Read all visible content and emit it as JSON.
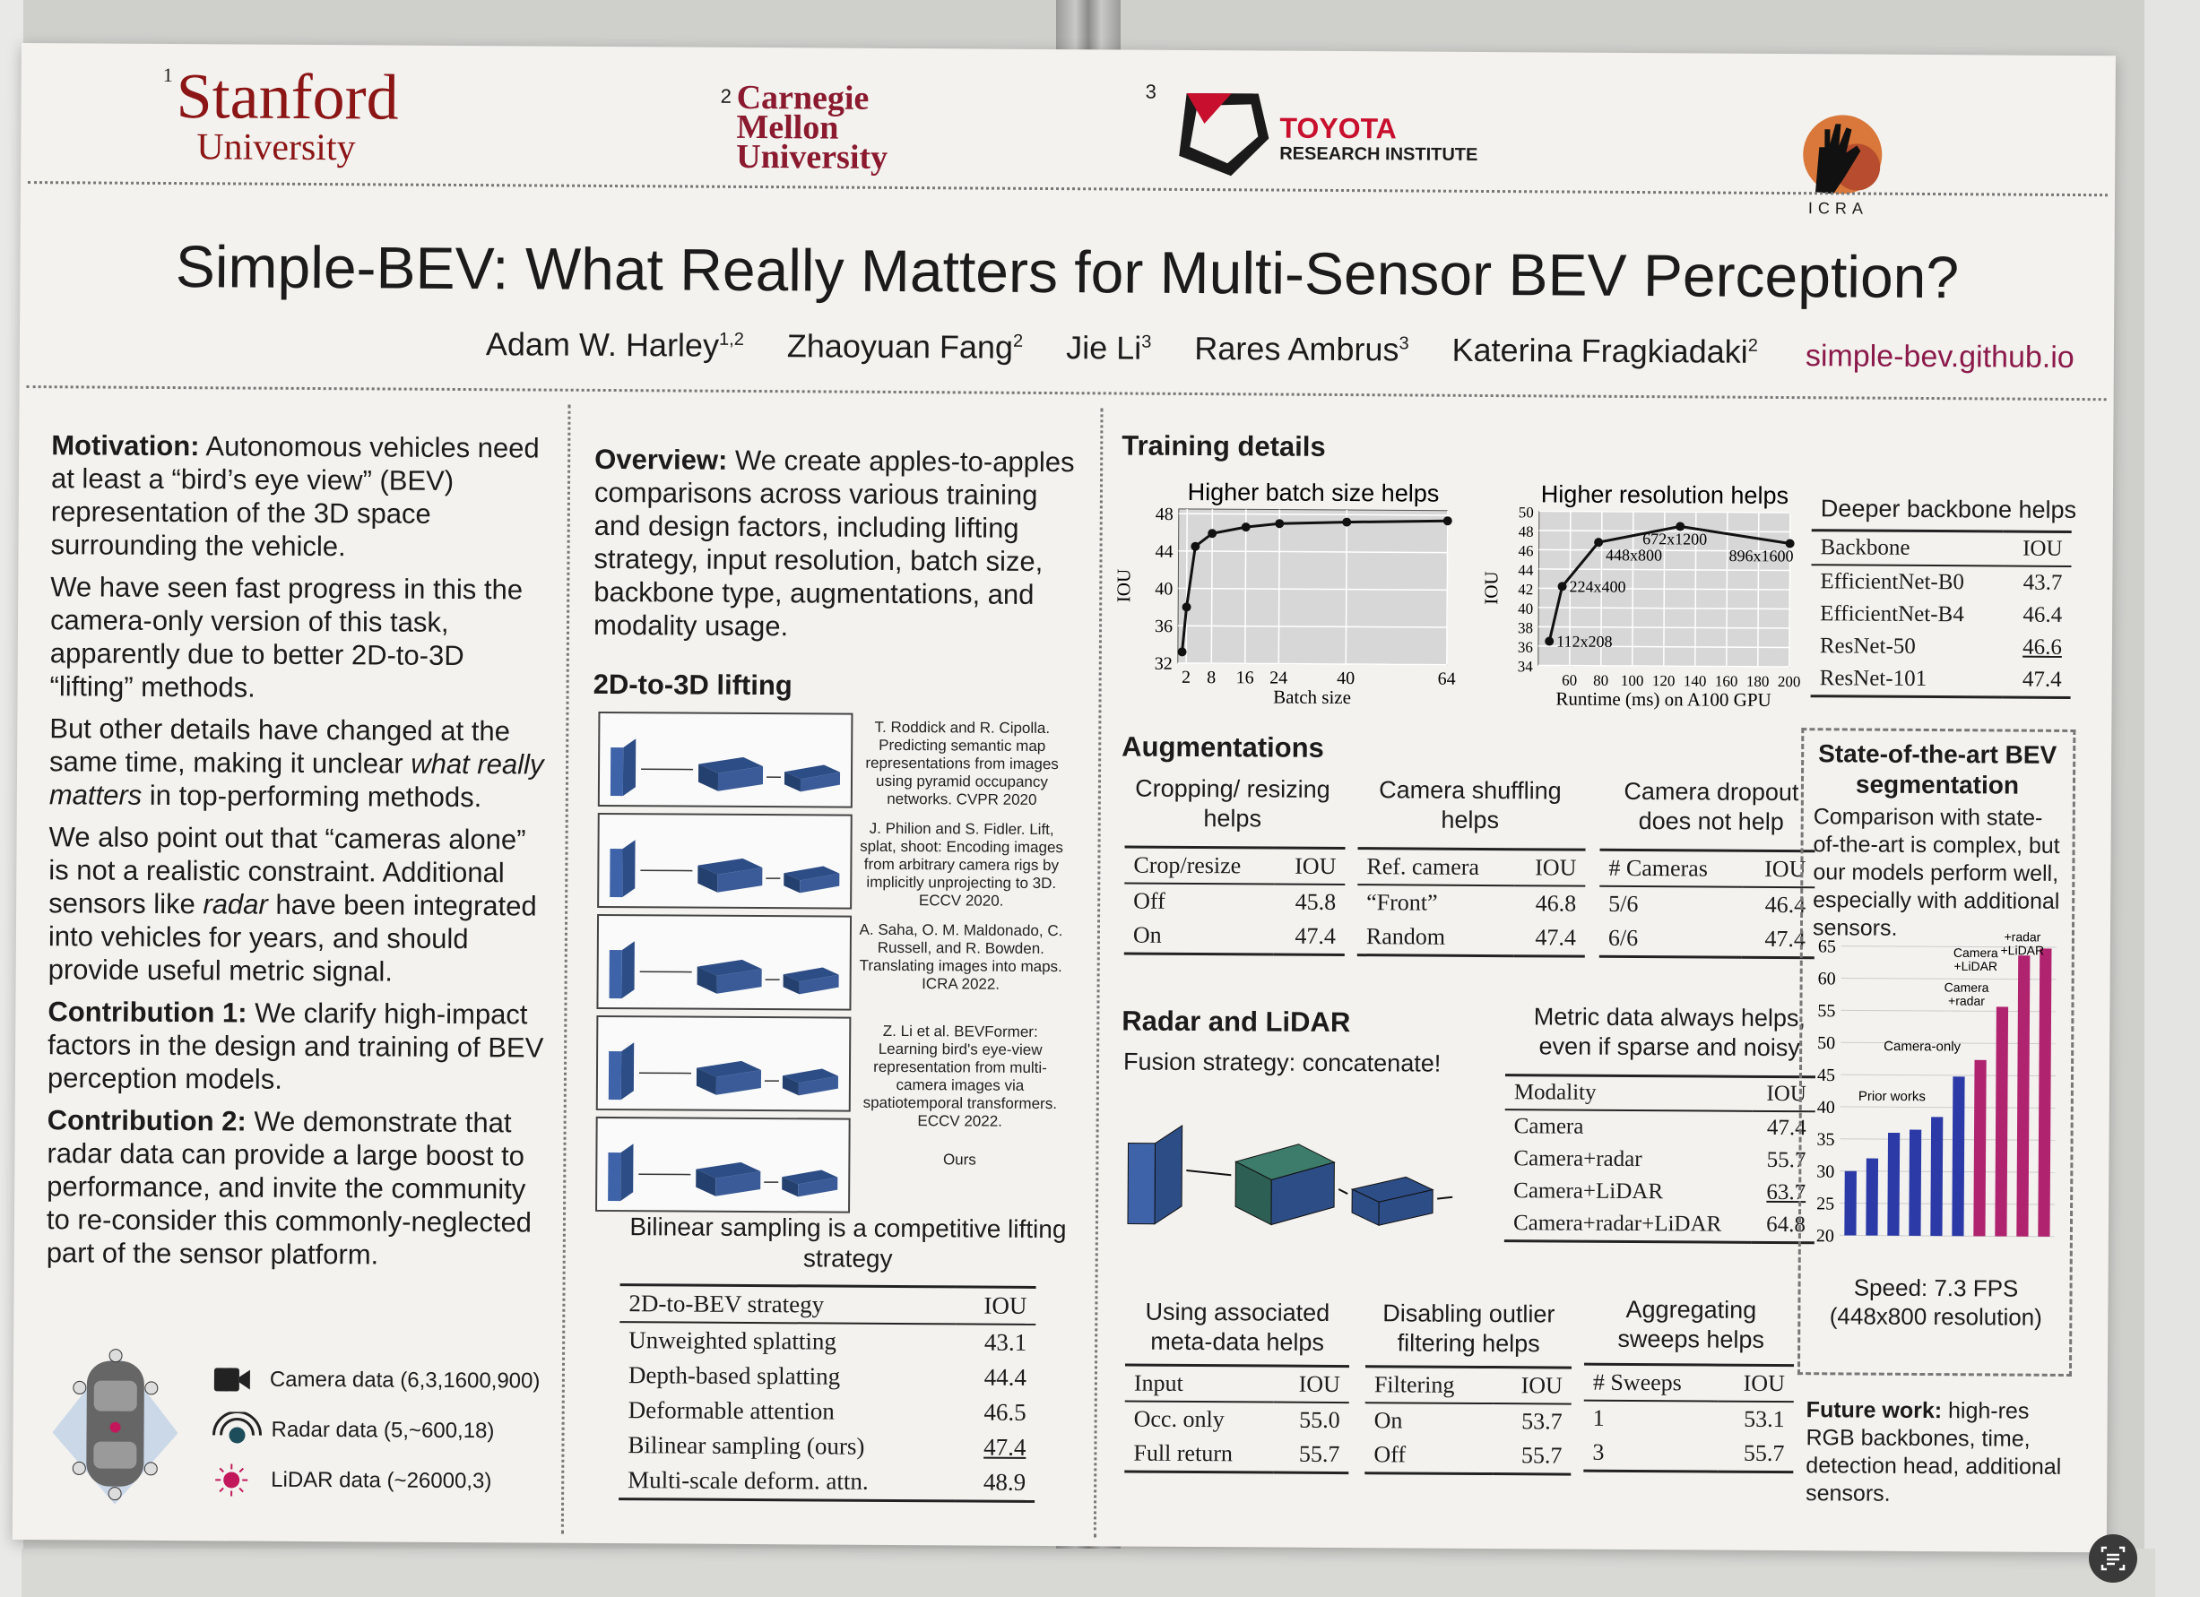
{
  "logos": {
    "stanford": {
      "sup": "1",
      "line1": "Stanford",
      "line2": "University"
    },
    "cmu": {
      "sup": "2",
      "line1": "Carnegie",
      "line2": "Mellon",
      "line3": "University"
    },
    "toyota": {
      "sup": "3",
      "line1": "TOYOTA",
      "line2": "RESEARCH INSTITUTE"
    },
    "icra": {
      "text": "ICRA"
    }
  },
  "title": "Simple-BEV: What Really Matters for Multi-Sensor BEV Perception?",
  "authors": [
    {
      "name": "Adam W. Harley",
      "sup": "1,2"
    },
    {
      "name": "Zhaoyuan Fang",
      "sup": "2"
    },
    {
      "name": "Jie Li",
      "sup": "3"
    },
    {
      "name": "Rares Ambrus",
      "sup": "3"
    },
    {
      "name": "Katerina Fragkiadaki",
      "sup": "2"
    }
  ],
  "website": "simple-bev.github.io",
  "col1": {
    "motivation_label": "Motivation:",
    "motivation_text": " Autonomous vehicles need at least a “bird’s eye view” (BEV) representation of the 3D space surrounding the vehicle.",
    "p2": "We have seen fast progress in this the camera-only version of this task, apparently due to better 2D-to-3D “lifting” methods.",
    "p3a": "But other details have changed at the same time, making it unclear ",
    "p3_em": "what really matters",
    "p3b": " in top-performing methods.",
    "p4a": "We also point out that “cameras alone” is not a realistic constraint. Additional sensors like ",
    "p4_em": "radar",
    "p4b": " have been integrated into vehicles for years, and should provide useful metric signal.",
    "c1_label": "Contribution 1:",
    "c1_text": "  We clarify high-impact factors in the design and training of BEV perception models.",
    "c2_label": "Contribution 2:",
    "c2_text": " We demonstrate that radar data can provide a large boost to performance, and invite the community to re-consider this commonly-neglected part of the sensor platform.",
    "legend": [
      {
        "icon": "camera-icon",
        "label": "Camera data (6,3,1600,900)"
      },
      {
        "icon": "radar-icon",
        "label": "Radar data (5,~600,18)"
      },
      {
        "icon": "lidar-icon",
        "label": "LiDAR data (~26000,3)"
      }
    ]
  },
  "col2": {
    "overview_label": "Overview:",
    "overview_text": " We create apples-to-apples comparisons across various training and design factors, including lifting strategy, input resolution, batch size, backbone type, augmentations, and modality usage.",
    "lifting_heading": "2D-to-3D lifting",
    "refs": [
      "T. Roddick and R. Cipolla. Predicting semantic map representations from images using pyramid occupancy networks. CVPR 2020",
      "J. Philion and S. Fidler. Lift, splat, shoot: Encoding images from arbitrary camera rigs by implicitly unprojecting to 3D. ECCV 2020.",
      "A. Saha, O. M. Maldonado, C. Russell, and R. Bowden. Translating images into maps. ICRA 2022.",
      "Z. Li et al. BEVFormer: Learning bird's eye-view representation from multi-camera images via spatiotemporal transformers. ECCV 2022.",
      "Ours"
    ],
    "bilinear_caption": "Bilinear sampling is a competitive lifting strategy",
    "lift_table": {
      "headers": [
        "2D-to-BEV strategy",
        "IOU"
      ],
      "rows": [
        [
          "Unweighted splatting",
          "43.1"
        ],
        [
          "Depth-based splatting",
          "44.4"
        ],
        [
          "Deformable attention",
          "46.5"
        ],
        [
          "Bilinear sampling (ours)",
          "47.4"
        ],
        [
          "Multi-scale deform. attn.",
          "48.9"
        ]
      ]
    }
  },
  "col3": {
    "training_heading": "Training details",
    "backbone_caption": "Deeper backbone helps",
    "backbone_table": {
      "headers": [
        "Backbone",
        "IOU"
      ],
      "rows": [
        [
          "EfficientNet-B0",
          "43.7"
        ],
        [
          "EfficientNet-B4",
          "46.4"
        ],
        [
          "ResNet-50",
          "46.6"
        ],
        [
          "ResNet-101",
          "47.4"
        ]
      ]
    },
    "augment_heading": "Augmentations",
    "crop_caption": "Cropping/ resizing helps",
    "crop_table": {
      "headers": [
        "Crop/resize",
        "IOU"
      ],
      "rows": [
        [
          "Off",
          "45.8"
        ],
        [
          "On",
          "47.4"
        ]
      ]
    },
    "shuffle_caption": "Camera shuffling helps",
    "shuffle_table": {
      "headers": [
        "Ref. camera",
        "IOU"
      ],
      "rows": [
        [
          "“Front”",
          "46.8"
        ],
        [
          "Random",
          "47.4"
        ]
      ]
    },
    "dropout_caption": "Camera dropout does not help",
    "dropout_table": {
      "headers": [
        "# Cameras",
        "IOU"
      ],
      "rows": [
        [
          "5/6",
          "46.4"
        ],
        [
          "6/6",
          "47.4"
        ]
      ]
    },
    "radar_heading": "Radar and LiDAR",
    "fusion_text": "Fusion strategy: concatenate!",
    "metric_caption": "Metric data always helps, even if sparse and noisy",
    "modality_table": {
      "headers": [
        "Modality",
        "IOU"
      ],
      "rows": [
        [
          "Camera",
          "47.4"
        ],
        [
          "Camera+radar",
          "55.7"
        ],
        [
          "Camera+LiDAR",
          "63.7"
        ],
        [
          "Camera+radar+LiDAR",
          "64.8"
        ]
      ]
    },
    "meta_caption": "Using associated meta-data helps",
    "meta_table": {
      "headers": [
        "Input",
        "IOU"
      ],
      "rows": [
        [
          "Occ. only",
          "55.0"
        ],
        [
          "Full return",
          "55.7"
        ]
      ]
    },
    "outlier_caption": "Disabling outlier filtering helps",
    "outlier_table": {
      "headers": [
        "Filtering",
        "IOU"
      ],
      "rows": [
        [
          "On",
          "53.7"
        ],
        [
          "Off",
          "55.7"
        ]
      ]
    },
    "sweeps_caption": "Aggregating sweeps helps",
    "sweeps_table": {
      "headers": [
        "# Sweeps",
        "IOU"
      ],
      "rows": [
        [
          "1",
          "53.1"
        ],
        [
          "3",
          "55.7"
        ]
      ]
    },
    "sota_heading": "State-of-the-art BEV segmentation",
    "sota_text": "Comparison with state-of-the-art is complex, but our models perform well, especially with additional sensors.",
    "speed_text": "Speed: 7.3 FPS (448x800 resolution)",
    "future_label": "Future work:",
    "future_text": " high-res RGB backbones, time, detection head, additional sensors."
  },
  "chart_data": [
    {
      "type": "line",
      "title": "Higher batch size helps",
      "xlabel": "Batch size",
      "ylabel": "IOU",
      "x": [
        1,
        2,
        4,
        8,
        16,
        24,
        40,
        64
      ],
      "y": [
        33.2,
        38.0,
        44.5,
        45.9,
        46.6,
        47.0,
        47.2,
        47.4
      ],
      "xticks": [
        2,
        8,
        16,
        24,
        40,
        64
      ],
      "yticks": [
        32,
        36,
        40,
        44,
        48
      ],
      "xlim": [
        0,
        64
      ],
      "ylim": [
        32,
        48.5
      ]
    },
    {
      "type": "line",
      "title": "Higher resolution helps",
      "xlabel": "Runtime (ms) on A100 GPU",
      "ylabel": "IOU",
      "x": [
        47,
        55,
        78,
        130,
        200
      ],
      "y": [
        36.5,
        42.2,
        46.8,
        48.5,
        46.8
      ],
      "point_labels": [
        "112x208",
        "224x400",
        "448x800",
        "672x1200",
        "896x1600"
      ],
      "xticks": [
        60,
        80,
        100,
        120,
        140,
        160,
        180,
        200
      ],
      "yticks": [
        34,
        36,
        38,
        40,
        42,
        44,
        46,
        48,
        50
      ],
      "xlim": [
        40,
        200
      ],
      "ylim": [
        34,
        50
      ]
    },
    {
      "type": "bar",
      "title": "State-of-the-art BEV segmentation",
      "ylabel": "IOU",
      "values": [
        30.0,
        32.0,
        36.0,
        36.5,
        38.5,
        44.8,
        47.4,
        55.7,
        63.7,
        64.8
      ],
      "colors": [
        "#2b3aa6",
        "#2b3aa6",
        "#2b3aa6",
        "#2b3aa6",
        "#2b3aa6",
        "#2b3aa6",
        "#b0236e",
        "#b0236e",
        "#b0236e",
        "#b0236e"
      ],
      "annotations": [
        "Prior works",
        "Camera-only",
        "Camera +radar",
        "Camera +LiDAR",
        "Camera +radar +LiDAR"
      ],
      "yticks": [
        20,
        25,
        30,
        35,
        40,
        45,
        50,
        55,
        60,
        65
      ],
      "ylim": [
        20,
        66
      ]
    }
  ]
}
